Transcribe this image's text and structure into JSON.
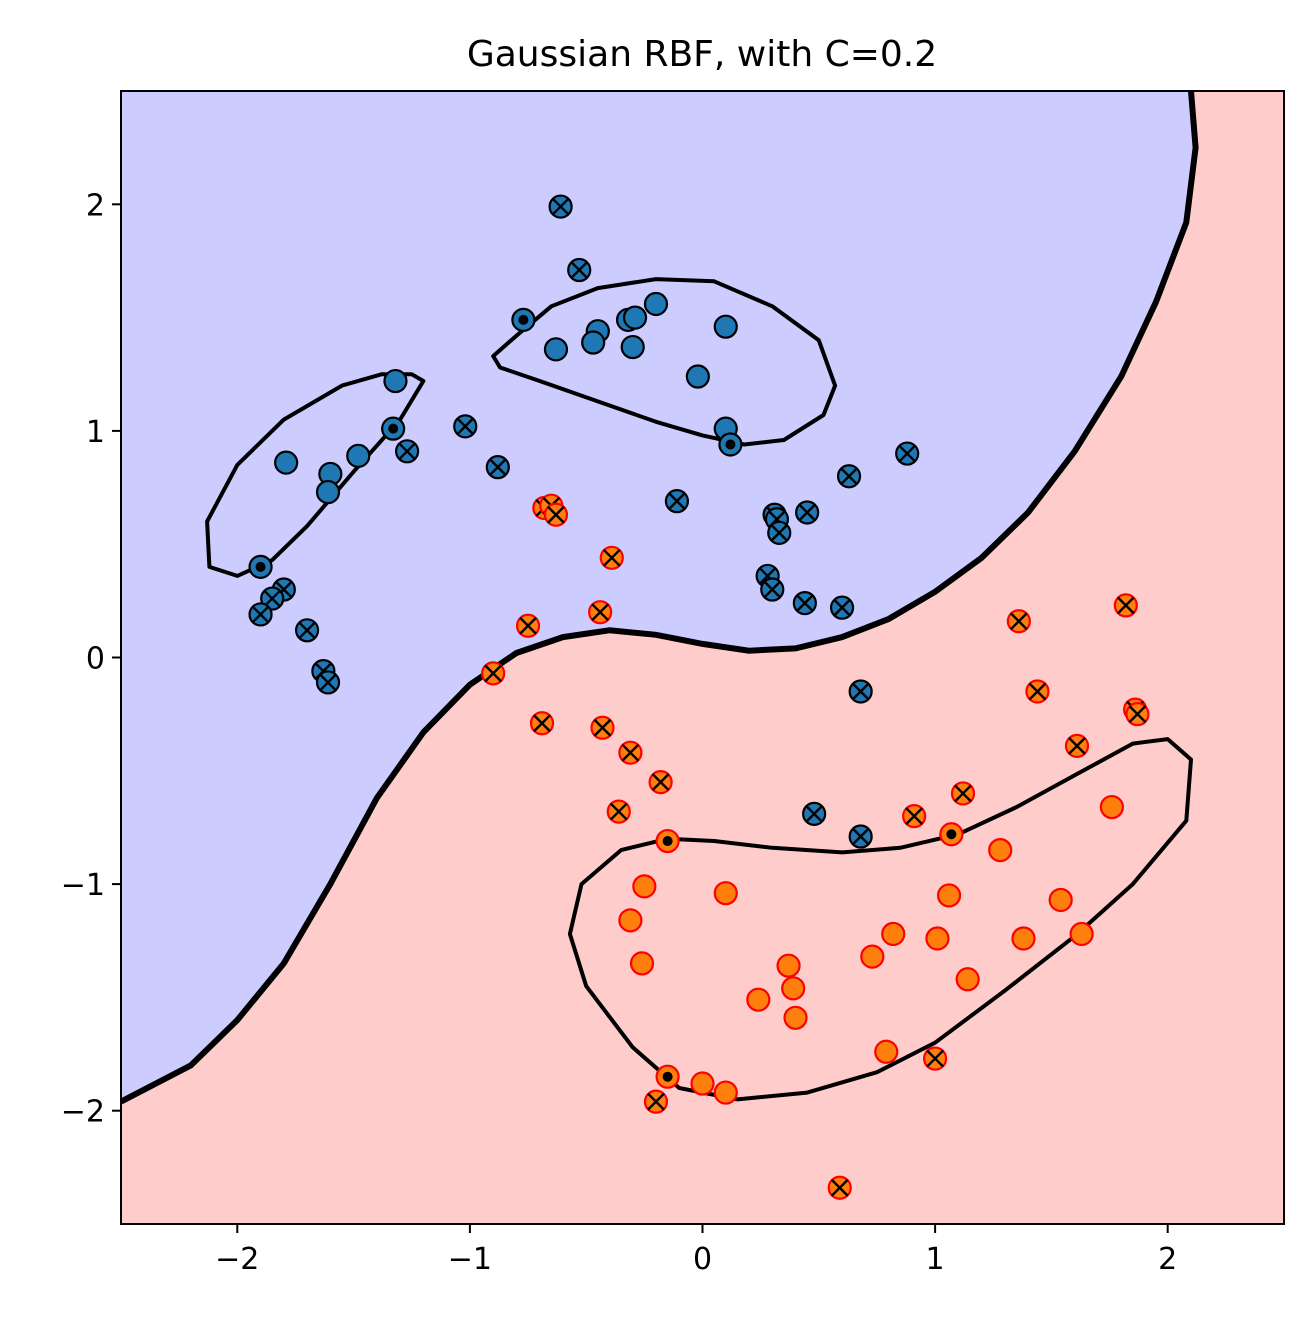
{
  "chart_data": {
    "type": "scatter",
    "title": "Gaussian RBF, with C=0.2",
    "xlabel": "",
    "ylabel": "",
    "xlim": [
      -2.5,
      2.5
    ],
    "ylim": [
      -2.5,
      2.5
    ],
    "xticks": [
      -2,
      -1,
      0,
      1,
      2
    ],
    "yticks": [
      -2,
      -1,
      0,
      1,
      2
    ],
    "xtick_labels": [
      "−2",
      "−1",
      "0",
      "1",
      "2"
    ],
    "ytick_labels": [
      "−2",
      "−1",
      "0",
      "1",
      "2"
    ],
    "grid": false,
    "colors": {
      "class_a_region": "#ccccff",
      "class_b_region": "#ffcccc",
      "class_a_point": "#1f77b4",
      "class_b_point": "#ff7f0e",
      "class_b_edge": "#ff0000",
      "boundary": "#000000"
    },
    "decision_boundary": [
      [
        -2.5,
        -1.96
      ],
      [
        -2.2,
        -1.8
      ],
      [
        -2.0,
        -1.6
      ],
      [
        -1.8,
        -1.35
      ],
      [
        -1.6,
        -1.0
      ],
      [
        -1.4,
        -0.62
      ],
      [
        -1.2,
        -0.33
      ],
      [
        -1.0,
        -0.12
      ],
      [
        -0.8,
        0.02
      ],
      [
        -0.6,
        0.09
      ],
      [
        -0.4,
        0.12
      ],
      [
        -0.2,
        0.1
      ],
      [
        0.0,
        0.06
      ],
      [
        0.2,
        0.03
      ],
      [
        0.4,
        0.04
      ],
      [
        0.6,
        0.09
      ],
      [
        0.8,
        0.17
      ],
      [
        1.0,
        0.29
      ],
      [
        1.2,
        0.44
      ],
      [
        1.4,
        0.64
      ],
      [
        1.6,
        0.91
      ],
      [
        1.8,
        1.24
      ],
      [
        1.95,
        1.57
      ],
      [
        2.08,
        1.92
      ],
      [
        2.12,
        2.25
      ],
      [
        2.1,
        2.5
      ]
    ],
    "margin_contours": [
      [
        [
          -1.25,
          1.25
        ],
        [
          -1.2,
          1.22
        ],
        [
          -1.3,
          1.05
        ],
        [
          -1.5,
          0.82
        ],
        [
          -1.7,
          0.58
        ],
        [
          -1.85,
          0.43
        ],
        [
          -2.0,
          0.36
        ],
        [
          -2.12,
          0.4
        ],
        [
          -2.13,
          0.6
        ],
        [
          -2.0,
          0.85
        ],
        [
          -1.8,
          1.05
        ],
        [
          -1.55,
          1.2
        ],
        [
          -1.38,
          1.25
        ],
        [
          -1.25,
          1.25
        ]
      ],
      [
        [
          -0.9,
          1.33
        ],
        [
          -0.8,
          1.42
        ],
        [
          -0.65,
          1.55
        ],
        [
          -0.45,
          1.63
        ],
        [
          -0.2,
          1.67
        ],
        [
          0.05,
          1.66
        ],
        [
          0.3,
          1.55
        ],
        [
          0.5,
          1.4
        ],
        [
          0.57,
          1.2
        ],
        [
          0.52,
          1.07
        ],
        [
          0.35,
          0.96
        ],
        [
          0.18,
          0.94
        ],
        [
          0.0,
          0.98
        ],
        [
          -0.2,
          1.04
        ],
        [
          -0.45,
          1.13
        ],
        [
          -0.7,
          1.22
        ],
        [
          -0.87,
          1.28
        ],
        [
          -0.9,
          1.33
        ]
      ],
      [
        [
          -0.15,
          -0.8
        ],
        [
          0.05,
          -0.81
        ],
        [
          0.3,
          -0.84
        ],
        [
          0.6,
          -0.86
        ],
        [
          0.85,
          -0.84
        ],
        [
          1.1,
          -0.78
        ],
        [
          1.35,
          -0.66
        ],
        [
          1.6,
          -0.52
        ],
        [
          1.85,
          -0.38
        ],
        [
          2.0,
          -0.36
        ],
        [
          2.1,
          -0.45
        ],
        [
          2.08,
          -0.72
        ],
        [
          1.85,
          -1.0
        ],
        [
          1.6,
          -1.23
        ],
        [
          1.3,
          -1.47
        ],
        [
          1.0,
          -1.7
        ],
        [
          0.75,
          -1.83
        ],
        [
          0.45,
          -1.92
        ],
        [
          0.15,
          -1.95
        ],
        [
          -0.1,
          -1.9
        ],
        [
          -0.3,
          -1.72
        ],
        [
          -0.5,
          -1.45
        ],
        [
          -0.57,
          -1.22
        ],
        [
          -0.52,
          -1.0
        ],
        [
          -0.35,
          -0.85
        ],
        [
          -0.15,
          -0.8
        ]
      ]
    ],
    "series": [
      {
        "values": [
          {
            "x": -0.61,
            "y": 1.99,
            "m": "x"
          },
          {
            "x": -0.53,
            "y": 1.71,
            "m": "x"
          },
          {
            "x": -0.77,
            "y": 1.49,
            "m": "sv"
          },
          {
            "x": -0.2,
            "y": 1.56
          },
          {
            "x": -0.32,
            "y": 1.49
          },
          {
            "x": -0.29,
            "y": 1.5
          },
          {
            "x": -0.45,
            "y": 1.44
          },
          {
            "x": -0.47,
            "y": 1.39
          },
          {
            "x": -0.63,
            "y": 1.36
          },
          {
            "x": -0.3,
            "y": 1.37
          },
          {
            "x": 0.1,
            "y": 1.46
          },
          {
            "x": -0.02,
            "y": 1.24
          },
          {
            "x": 0.1,
            "y": 1.01
          },
          {
            "x": 0.12,
            "y": 0.94,
            "m": "sv"
          },
          {
            "x": -1.32,
            "y": 1.22
          },
          {
            "x": -1.33,
            "y": 1.01,
            "m": "sv"
          },
          {
            "x": -1.27,
            "y": 0.91,
            "m": "x"
          },
          {
            "x": -1.48,
            "y": 0.89
          },
          {
            "x": -1.79,
            "y": 0.86
          },
          {
            "x": -1.6,
            "y": 0.81
          },
          {
            "x": -1.61,
            "y": 0.73
          },
          {
            "x": -1.9,
            "y": 0.4,
            "m": "sv"
          },
          {
            "x": -1.8,
            "y": 0.3,
            "m": "x"
          },
          {
            "x": -1.85,
            "y": 0.26,
            "m": "x"
          },
          {
            "x": -1.9,
            "y": 0.19,
            "m": "x"
          },
          {
            "x": -1.7,
            "y": 0.12,
            "m": "x"
          },
          {
            "x": -1.63,
            "y": -0.06,
            "m": "x"
          },
          {
            "x": -1.61,
            "y": -0.11,
            "m": "x"
          },
          {
            "x": -1.02,
            "y": 1.02,
            "m": "x"
          },
          {
            "x": -0.88,
            "y": 0.84,
            "m": "x"
          },
          {
            "x": -0.11,
            "y": 0.69,
            "m": "x"
          },
          {
            "x": 0.31,
            "y": 0.63,
            "m": "x"
          },
          {
            "x": 0.32,
            "y": 0.61,
            "m": "x"
          },
          {
            "x": 0.33,
            "y": 0.55,
            "m": "x"
          },
          {
            "x": 0.45,
            "y": 0.64,
            "m": "x"
          },
          {
            "x": 0.63,
            "y": 0.8,
            "m": "x"
          },
          {
            "x": 0.88,
            "y": 0.9,
            "m": "x"
          },
          {
            "x": 0.28,
            "y": 0.36,
            "m": "x"
          },
          {
            "x": 0.3,
            "y": 0.3,
            "m": "x"
          },
          {
            "x": 0.44,
            "y": 0.24,
            "m": "x"
          },
          {
            "x": 0.6,
            "y": 0.22,
            "m": "x"
          },
          {
            "x": 0.68,
            "y": -0.15,
            "m": "x"
          },
          {
            "x": 0.48,
            "y": -0.69,
            "m": "x"
          },
          {
            "x": 0.68,
            "y": -0.79,
            "m": "x"
          }
        ]
      },
      {
        "values": [
          {
            "x": -0.68,
            "y": 0.66,
            "m": "x"
          },
          {
            "x": -0.65,
            "y": 0.67,
            "m": "x"
          },
          {
            "x": -0.63,
            "y": 0.63,
            "m": "x"
          },
          {
            "x": -0.39,
            "y": 0.44,
            "m": "x"
          },
          {
            "x": -0.75,
            "y": 0.14,
            "m": "x"
          },
          {
            "x": -0.44,
            "y": 0.2,
            "m": "x"
          },
          {
            "x": -0.9,
            "y": -0.07,
            "m": "x"
          },
          {
            "x": -0.69,
            "y": -0.29,
            "m": "x"
          },
          {
            "x": -0.43,
            "y": -0.31,
            "m": "x"
          },
          {
            "x": -0.31,
            "y": -0.42,
            "m": "x"
          },
          {
            "x": -0.18,
            "y": -0.55,
            "m": "x"
          },
          {
            "x": -0.36,
            "y": -0.68,
            "m": "x"
          },
          {
            "x": -0.15,
            "y": -0.81,
            "m": "sv"
          },
          {
            "x": 1.36,
            "y": 0.16,
            "m": "x"
          },
          {
            "x": 1.82,
            "y": 0.23,
            "m": "x"
          },
          {
            "x": 1.44,
            "y": -0.15,
            "m": "x"
          },
          {
            "x": 1.86,
            "y": -0.23,
            "m": "x"
          },
          {
            "x": 1.87,
            "y": -0.25,
            "m": "x"
          },
          {
            "x": 1.61,
            "y": -0.39,
            "m": "x"
          },
          {
            "x": 1.12,
            "y": -0.6,
            "m": "x"
          },
          {
            "x": 0.91,
            "y": -0.7,
            "m": "x"
          },
          {
            "x": 1.07,
            "y": -0.78,
            "m": "sv"
          },
          {
            "x": 1.76,
            "y": -0.66
          },
          {
            "x": 1.28,
            "y": -0.85
          },
          {
            "x": -0.25,
            "y": -1.01
          },
          {
            "x": 0.1,
            "y": -1.04
          },
          {
            "x": 1.06,
            "y": -1.05
          },
          {
            "x": 1.54,
            "y": -1.07
          },
          {
            "x": -0.31,
            "y": -1.16
          },
          {
            "x": 0.82,
            "y": -1.22
          },
          {
            "x": 1.01,
            "y": -1.24
          },
          {
            "x": 1.38,
            "y": -1.24
          },
          {
            "x": 1.63,
            "y": -1.22
          },
          {
            "x": -0.26,
            "y": -1.35
          },
          {
            "x": 0.37,
            "y": -1.36
          },
          {
            "x": 0.73,
            "y": -1.32
          },
          {
            "x": 1.14,
            "y": -1.42
          },
          {
            "x": 0.39,
            "y": -1.46
          },
          {
            "x": 0.24,
            "y": -1.51
          },
          {
            "x": 0.4,
            "y": -1.59
          },
          {
            "x": 0.79,
            "y": -1.74
          },
          {
            "x": 1.0,
            "y": -1.77,
            "m": "x"
          },
          {
            "x": -0.15,
            "y": -1.85,
            "m": "sv"
          },
          {
            "x": 0.0,
            "y": -1.88
          },
          {
            "x": 0.1,
            "y": -1.92
          },
          {
            "x": -0.2,
            "y": -1.96,
            "m": "x"
          },
          {
            "x": 0.59,
            "y": -2.34,
            "m": "x"
          }
        ]
      }
    ]
  }
}
